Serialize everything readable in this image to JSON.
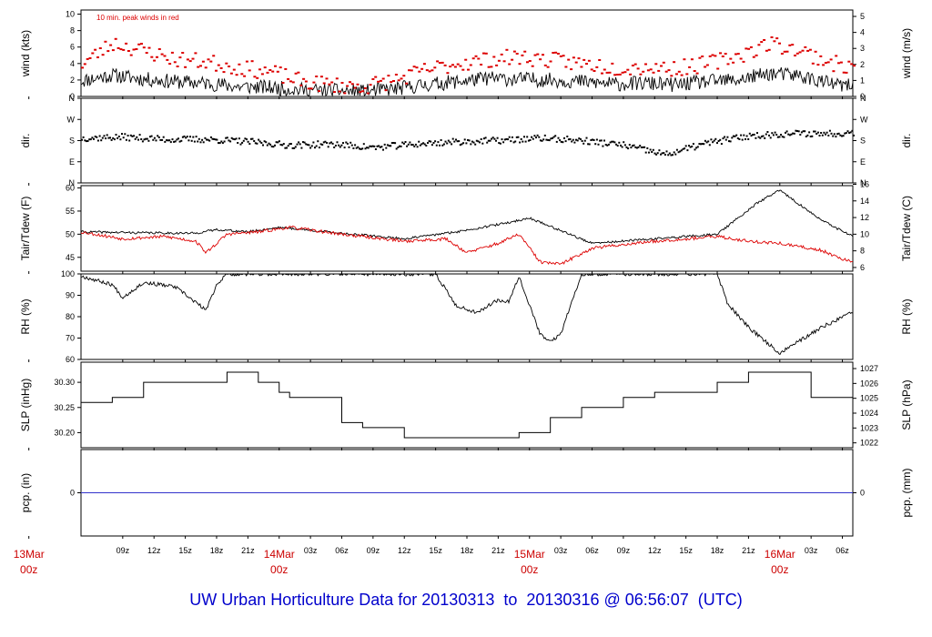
{
  "title": "UW Urban Horticulture Data for 20130313  to  20130316 @ 06:56:07  (UTC)",
  "colors": {
    "primary": "#000000",
    "peak": "#dd0000",
    "date_label": "#cc0000",
    "precip": "#3333cc",
    "title": "#0000cc"
  },
  "x_axis": {
    "range": [
      "2013-03-13T05:00Z",
      "2013-03-16T07:00Z"
    ],
    "hour_ticks": [
      {
        "t": "2013-03-13T09:00Z",
        "label": "09z"
      },
      {
        "t": "2013-03-13T12:00Z",
        "label": "12z"
      },
      {
        "t": "2013-03-13T15:00Z",
        "label": "15z"
      },
      {
        "t": "2013-03-13T18:00Z",
        "label": "18z"
      },
      {
        "t": "2013-03-13T21:00Z",
        "label": "21z"
      },
      {
        "t": "2013-03-14T03:00Z",
        "label": "03z"
      },
      {
        "t": "2013-03-14T06:00Z",
        "label": "06z"
      },
      {
        "t": "2013-03-14T09:00Z",
        "label": "09z"
      },
      {
        "t": "2013-03-14T12:00Z",
        "label": "12z"
      },
      {
        "t": "2013-03-14T15:00Z",
        "label": "15z"
      },
      {
        "t": "2013-03-14T18:00Z",
        "label": "18z"
      },
      {
        "t": "2013-03-14T21:00Z",
        "label": "21z"
      },
      {
        "t": "2013-03-15T03:00Z",
        "label": "03z"
      },
      {
        "t": "2013-03-15T06:00Z",
        "label": "06z"
      },
      {
        "t": "2013-03-15T09:00Z",
        "label": "09z"
      },
      {
        "t": "2013-03-15T12:00Z",
        "label": "12z"
      },
      {
        "t": "2013-03-15T15:00Z",
        "label": "15z"
      },
      {
        "t": "2013-03-15T18:00Z",
        "label": "18z"
      },
      {
        "t": "2013-03-15T21:00Z",
        "label": "21z"
      },
      {
        "t": "2013-03-16T03:00Z",
        "label": "03z"
      },
      {
        "t": "2013-03-16T06:00Z",
        "label": "06z"
      }
    ],
    "day_ticks": [
      {
        "t": "2013-03-13T00:00Z",
        "day": "13Mar",
        "hour": "00z"
      },
      {
        "t": "2013-03-14T00:00Z",
        "day": "14Mar",
        "hour": "00z"
      },
      {
        "t": "2013-03-15T00:00Z",
        "day": "15Mar",
        "hour": "00z"
      },
      {
        "t": "2013-03-16T00:00Z",
        "day": "16Mar",
        "hour": "00z"
      }
    ]
  },
  "chart_data": [
    {
      "type": "line",
      "id": "wind",
      "annotation": "10 min. peak winds in red",
      "ylabel": "wind (kts)",
      "ylabel_right": "wind (m/s)",
      "ylim": [
        0,
        10.5
      ],
      "ticks": [
        0,
        2,
        4,
        6,
        8,
        10
      ],
      "right_ylim": [
        0,
        5.4
      ],
      "right_ticks": [
        0,
        1,
        2,
        3,
        4,
        5
      ],
      "series": [
        {
          "role": "speed",
          "style": "noisy-line",
          "seed": 11,
          "noise": 0.9,
          "clip": [
            0.1,
            9.5
          ],
          "x": [
            "2013-03-13T05:00Z",
            "2013-03-13T08:00Z",
            "2013-03-13T11:00Z",
            "2013-03-13T14:00Z",
            "2013-03-13T17:00Z",
            "2013-03-13T20:00Z",
            "2013-03-13T23:00Z",
            "2013-03-14T02:00Z",
            "2013-03-14T05:00Z",
            "2013-03-14T08:00Z",
            "2013-03-14T11:00Z",
            "2013-03-14T14:00Z",
            "2013-03-14T17:00Z",
            "2013-03-14T20:00Z",
            "2013-03-14T23:00Z",
            "2013-03-15T02:00Z",
            "2013-03-15T05:00Z",
            "2013-03-15T08:00Z",
            "2013-03-15T11:00Z",
            "2013-03-15T14:00Z",
            "2013-03-15T17:00Z",
            "2013-03-15T20:00Z",
            "2013-03-15T23:00Z",
            "2013-03-16T02:00Z",
            "2013-03-16T05:00Z",
            "2013-03-16T07:00Z"
          ],
          "y": [
            1.9,
            2.6,
            2.1,
            1.8,
            1.6,
            1.2,
            1.1,
            0.8,
            0.7,
            0.6,
            0.9,
            1.4,
            1.8,
            2.2,
            2.1,
            2.0,
            1.8,
            1.5,
            1.6,
            1.4,
            1.8,
            2.0,
            2.8,
            2.5,
            1.5,
            1.2
          ]
        },
        {
          "role": "peak",
          "style": "dots",
          "seed": 23,
          "noise": 1.0,
          "clip": [
            0.3,
            10
          ],
          "x": [
            "2013-03-13T05:00Z",
            "2013-03-13T08:00Z",
            "2013-03-13T11:00Z",
            "2013-03-13T14:00Z",
            "2013-03-13T17:00Z",
            "2013-03-13T20:00Z",
            "2013-03-13T23:00Z",
            "2013-03-14T02:00Z",
            "2013-03-14T05:00Z",
            "2013-03-14T08:00Z",
            "2013-03-14T11:00Z",
            "2013-03-14T14:00Z",
            "2013-03-14T17:00Z",
            "2013-03-14T20:00Z",
            "2013-03-14T23:00Z",
            "2013-03-15T02:00Z",
            "2013-03-15T05:00Z",
            "2013-03-15T08:00Z",
            "2013-03-15T11:00Z",
            "2013-03-15T14:00Z",
            "2013-03-15T17:00Z",
            "2013-03-15T20:00Z",
            "2013-03-15T23:00Z",
            "2013-03-16T02:00Z",
            "2013-03-16T05:00Z",
            "2013-03-16T07:00Z"
          ],
          "y": [
            4.0,
            6.5,
            5.5,
            4.5,
            4.2,
            3.5,
            3.0,
            1.8,
            1.4,
            1.2,
            2.0,
            3.2,
            4.0,
            4.5,
            4.8,
            4.4,
            4.0,
            3.5,
            3.6,
            3.4,
            4.0,
            5.0,
            6.5,
            5.5,
            4.0,
            3.5
          ]
        }
      ]
    },
    {
      "type": "scatter",
      "id": "direction",
      "ylabel": "dir.",
      "ylabel_right": "dir.",
      "ylim": [
        0,
        360
      ],
      "tick_labels": [
        {
          "v": 0,
          "label": "N"
        },
        {
          "v": 90,
          "label": "E"
        },
        {
          "v": 180,
          "label": "S"
        },
        {
          "v": 270,
          "label": "W"
        },
        {
          "v": 360,
          "label": "N"
        }
      ],
      "series": [
        {
          "role": "dir",
          "style": "dots",
          "seed": 37,
          "noise": 14,
          "clip": [
            0,
            360
          ],
          "x": [
            "2013-03-13T05:00Z",
            "2013-03-13T09:00Z",
            "2013-03-13T13:00Z",
            "2013-03-13T17:00Z",
            "2013-03-13T21:00Z",
            "2013-03-14T01:00Z",
            "2013-03-14T05:00Z",
            "2013-03-14T09:00Z",
            "2013-03-14T13:00Z",
            "2013-03-14T17:00Z",
            "2013-03-14T21:00Z",
            "2013-03-15T01:00Z",
            "2013-03-15T05:00Z",
            "2013-03-15T09:00Z",
            "2013-03-15T11:00Z",
            "2013-03-15T13:00Z",
            "2013-03-15T17:00Z",
            "2013-03-15T21:00Z",
            "2013-03-16T01:00Z",
            "2013-03-16T05:00Z",
            "2013-03-16T07:00Z"
          ],
          "y": [
            190,
            195,
            185,
            185,
            175,
            160,
            165,
            150,
            165,
            175,
            180,
            190,
            180,
            160,
            140,
            120,
            170,
            200,
            210,
            210,
            215
          ]
        }
      ]
    },
    {
      "type": "line",
      "id": "temperature",
      "ylabel": "Tair/Tdew (F)",
      "ylabel_right": "Tair/Tdew (C)",
      "ylim": [
        42,
        60.5
      ],
      "ticks": [
        45,
        50,
        55,
        60
      ],
      "right_ticks": [
        6,
        8,
        10,
        12,
        14,
        16
      ],
      "series": [
        {
          "role": "tair",
          "style": "noisy-line",
          "seed": 41,
          "noise": 0.25,
          "x": [
            "2013-03-13T05:00Z",
            "2013-03-13T11:00Z",
            "2013-03-13T16:00Z",
            "2013-03-13T18:00Z",
            "2013-03-13T21:00Z",
            "2013-03-14T00:00Z",
            "2013-03-14T06:00Z",
            "2013-03-14T12:00Z",
            "2013-03-14T17:00Z",
            "2013-03-14T22:00Z",
            "2013-03-15T00:00Z",
            "2013-03-15T03:00Z",
            "2013-03-15T06:00Z",
            "2013-03-15T12:00Z",
            "2013-03-15T18:00Z",
            "2013-03-15T22:00Z",
            "2013-03-16T00:00Z",
            "2013-03-16T04:00Z",
            "2013-03-16T07:00Z"
          ],
          "y": [
            50.5,
            50.3,
            50.2,
            51.0,
            50.5,
            51.5,
            50.2,
            49.0,
            50.5,
            52.5,
            53.5,
            50.8,
            48.0,
            49.0,
            50.0,
            57.0,
            59.5,
            53.0,
            49.5
          ]
        },
        {
          "role": "tdew",
          "style": "noisy-line",
          "seed": 53,
          "noise": 0.35,
          "x": [
            "2013-03-13T05:00Z",
            "2013-03-13T09:00Z",
            "2013-03-13T13:00Z",
            "2013-03-13T16:00Z",
            "2013-03-13T17:00Z",
            "2013-03-13T19:00Z",
            "2013-03-13T22:00Z",
            "2013-03-14T01:00Z",
            "2013-03-14T06:00Z",
            "2013-03-14T12:00Z",
            "2013-03-14T16:00Z",
            "2013-03-14T18:00Z",
            "2013-03-14T21:00Z",
            "2013-03-14T23:00Z",
            "2013-03-15T01:00Z",
            "2013-03-15T03:00Z",
            "2013-03-15T06:00Z",
            "2013-03-15T12:00Z",
            "2013-03-15T18:00Z",
            "2013-03-15T21:00Z",
            "2013-03-16T00:00Z",
            "2013-03-16T04:00Z",
            "2013-03-16T07:00Z"
          ],
          "y": [
            50.5,
            49.0,
            49.5,
            48.5,
            46.0,
            50.0,
            50.5,
            51.5,
            50.0,
            48.5,
            49.0,
            46.0,
            48.0,
            50.0,
            44.0,
            43.5,
            47.0,
            48.5,
            49.5,
            48.5,
            48.0,
            46.5,
            43.8
          ]
        }
      ]
    },
    {
      "type": "line",
      "id": "rh",
      "ylabel": "RH (%)",
      "ylabel_right": "RH (%)",
      "ylim": [
        60,
        100
      ],
      "ticks": [
        60,
        70,
        80,
        90,
        100
      ],
      "series": [
        {
          "role": "rh",
          "style": "noisy-line",
          "seed": 67,
          "noise": 0.9,
          "clip": [
            60,
            100
          ],
          "x": [
            "2013-03-13T05:00Z",
            "2013-03-13T08:00Z",
            "2013-03-13T09:00Z",
            "2013-03-13T11:00Z",
            "2013-03-13T14:00Z",
            "2013-03-13T17:00Z",
            "2013-03-13T18:00Z",
            "2013-03-13T19:00Z",
            "2013-03-14T15:00Z",
            "2013-03-14T17:00Z",
            "2013-03-14T19:00Z",
            "2013-03-14T21:00Z",
            "2013-03-14T22:00Z",
            "2013-03-14T23:00Z",
            "2013-03-15T01:00Z",
            "2013-03-15T02:00Z",
            "2013-03-15T03:00Z",
            "2013-03-15T05:00Z",
            "2013-03-15T18:00Z",
            "2013-03-15T19:00Z",
            "2013-03-15T21:00Z",
            "2013-03-16T00:00Z",
            "2013-03-16T04:00Z",
            "2013-03-16T07:00Z"
          ],
          "y": [
            99,
            95,
            89,
            96,
            94,
            83,
            95,
            100,
            100,
            85,
            82,
            88,
            87,
            99,
            72,
            68,
            72,
            100,
            100,
            86,
            75,
            63,
            75,
            82
          ]
        }
      ]
    },
    {
      "type": "line",
      "id": "pressure",
      "ylabel": "SLP (inHg)",
      "ylabel_right": "SLP (hPa)",
      "ylim": [
        30.17,
        30.34
      ],
      "ticks": [
        30.2,
        30.25,
        30.3
      ],
      "tick_labels": [
        "30.20",
        "30.25",
        "30.30"
      ],
      "right_ticks": [
        1022,
        1023,
        1024,
        1025,
        1026,
        1027
      ],
      "series": [
        {
          "role": "slp",
          "style": "step",
          "x": [
            "2013-03-13T05:00Z",
            "2013-03-13T08:00Z",
            "2013-03-13T11:00Z",
            "2013-03-13T16:00Z",
            "2013-03-13T19:00Z",
            "2013-03-13T21:00Z",
            "2013-03-13T22:00Z",
            "2013-03-14T00:00Z",
            "2013-03-14T01:00Z",
            "2013-03-14T06:00Z",
            "2013-03-14T08:00Z",
            "2013-03-14T12:00Z",
            "2013-03-14T17:00Z",
            "2013-03-14T23:00Z",
            "2013-03-15T02:00Z",
            "2013-03-15T05:00Z",
            "2013-03-15T09:00Z",
            "2013-03-15T12:00Z",
            "2013-03-15T15:00Z",
            "2013-03-15T18:00Z",
            "2013-03-15T21:00Z",
            "2013-03-16T03:00Z",
            "2013-03-16T07:00Z"
          ],
          "y": [
            30.26,
            30.27,
            30.3,
            30.3,
            30.32,
            30.32,
            30.3,
            30.28,
            30.27,
            30.22,
            30.21,
            30.19,
            30.19,
            30.2,
            30.23,
            30.25,
            30.27,
            30.28,
            30.28,
            30.3,
            30.32,
            30.27,
            30.27
          ]
        }
      ]
    },
    {
      "type": "line",
      "id": "precip",
      "ylabel": "pcp. (in)",
      "ylabel_right": "pcp. (mm)",
      "ylim": [
        -1,
        1
      ],
      "ticks": [
        0
      ],
      "right_ticks": [
        0
      ],
      "series": [
        {
          "role": "pcp",
          "style": "line",
          "x": [
            "2013-03-13T05:00Z",
            "2013-03-16T07:00Z"
          ],
          "y": [
            0,
            0
          ]
        }
      ]
    }
  ]
}
